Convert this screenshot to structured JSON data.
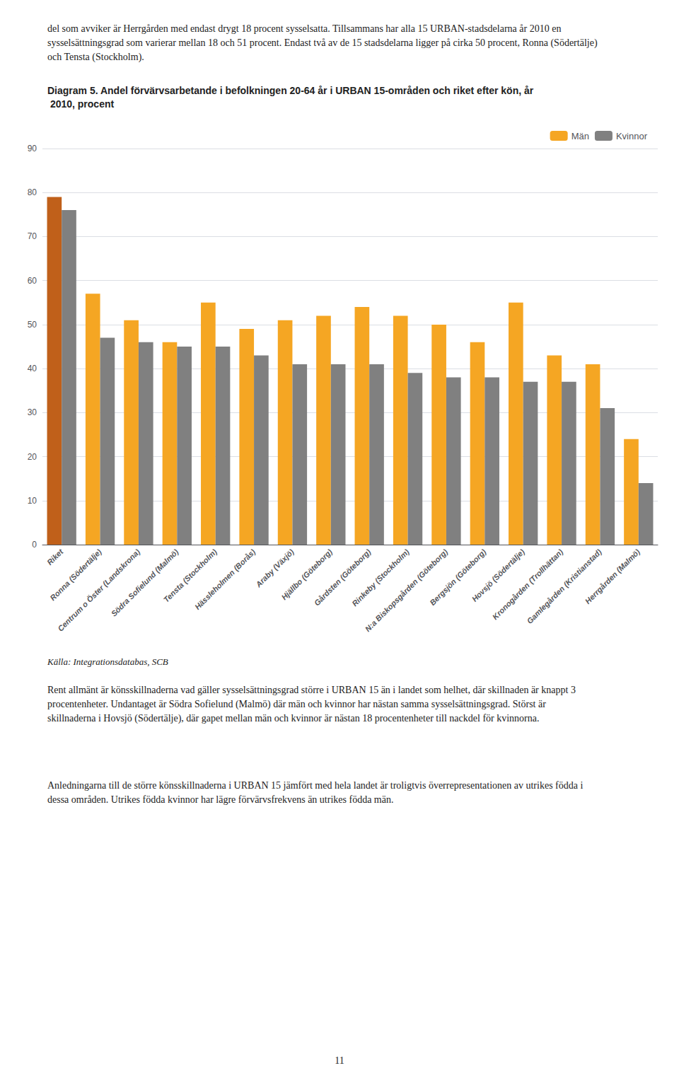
{
  "chart_data": {
    "type": "bar",
    "title": "Diagram 5. Andel förvärvsarbetande i befolkningen 20-64 år i URBAN 15-områden och riket efter kön, år 2010, procent",
    "annotations": [
      "del som avviker är Herrgården med endast drygt 18 procent sysselsatta. Tillsammans har alla 15 URBAN-stadsdelarna år 2010 en sysselsättningsgrad som varierar mellan 18 och 51 procent. Endast två av de 15 stadsdelarna ligger på cirka 50 procent, Ronna (Södertälje) och Tensta (Stockholm).",
      "Källa: Integrationsdatabas, SCB",
      "Rent allmänt är könsskillnaderna vad gäller sysselsättningsgrad större i URBAN 15 än i landet som helhet, där skillnaden är knappt 3 procentenheter. Undantaget är Södra Sofielund (Malmö) där män och kvinnor har nästan samma sysselsättningsgrad. Störst är skillnaderna i Hovsjö (Södertälje), där gapet mellan män och kvinnor är nästan 18 procentenheter till nackdel för kvinnorna.",
      "Anledningarna till de större könsskillnaderna i URBAN 15 jämfört med hela landet är troligtvis överrepresentationen av utrikes födda i dessa områden. Utrikes födda kvinnor har lägre förvärvsfrekvens än utrikes födda män.",
      "11"
    ],
    "categories": [
      "Riket",
      "Ronna (Södertälje)",
      "Centrum o Öster (Landskrona)",
      "Södra Sofielund (Malmö)",
      "Tensta (Stockholm)",
      "Hässleholmen (Borås)",
      "Araby (Växjö)",
      "Hjällbo (Göteborg)",
      "Gårdsten (Göteborg)",
      "Rinkeby (Stockholm)",
      "N:a Biskopsgården (Göteborg)",
      "Bergsjön (Göteborg)",
      "Hovsjö (Södertälje)",
      "Kronogården (Trollhättan)",
      "Gamlegården (Kristianstad)",
      "Herrgården (Malmö)"
    ],
    "series": [
      {
        "name": "Män",
        "color": "#f5a623",
        "colors": [
          "#c0601a",
          "#f5a623",
          "#f5a623",
          "#f5a623",
          "#f5a623",
          "#f5a623",
          "#f5a623",
          "#f5a623",
          "#f5a623",
          "#f5a623",
          "#f5a623",
          "#f5a623",
          "#f5a623",
          "#f5a623",
          "#f5a623",
          "#f5a623"
        ],
        "values": [
          79,
          57,
          51,
          46,
          55,
          49,
          51,
          52,
          54,
          52,
          50,
          46,
          55,
          43,
          41,
          24
        ]
      },
      {
        "name": "Kvinnor",
        "color": "#808080",
        "values": [
          76,
          47,
          46,
          45,
          45,
          43,
          41,
          41,
          41,
          39,
          38,
          38,
          37,
          37,
          31,
          14
        ]
      }
    ],
    "ylim": [
      0,
      90
    ],
    "yticks": [
      0,
      10,
      20,
      30,
      40,
      50,
      60,
      70,
      80,
      90
    ],
    "grid": true,
    "legend": "upper right"
  }
}
